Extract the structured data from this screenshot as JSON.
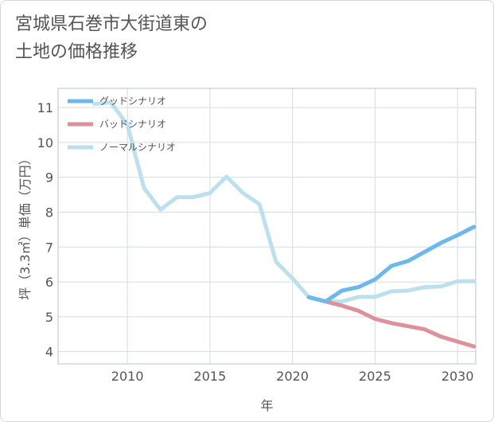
{
  "title_line1": "宮城県石巻市大街道東の",
  "title_line2": "土地の価格推移",
  "chart_data": {
    "type": "line",
    "xlabel": "年",
    "ylabel": "坪（3.3㎡）単価（万円）",
    "xlim": [
      2005.8,
      2031.1
    ],
    "ylim": [
      3.65,
      11.55
    ],
    "xticks": [
      2010,
      2015,
      2020,
      2025,
      2030
    ],
    "yticks": [
      4,
      5,
      6,
      7,
      8,
      9,
      10,
      11
    ],
    "grid": true,
    "legend_position": "top-left",
    "series": [
      {
        "name": "グッドシナリオ",
        "color": "#6cb8ec",
        "x": [
          2021,
          2022,
          2023,
          2024,
          2025,
          2026,
          2027,
          2028,
          2029,
          2030,
          2031
        ],
        "y": [
          5.56,
          5.44,
          5.75,
          5.85,
          6.07,
          6.46,
          6.6,
          6.86,
          7.12,
          7.34,
          7.58
        ]
      },
      {
        "name": "バッドシナリオ",
        "color": "#e0909a",
        "x": [
          2021,
          2022,
          2023,
          2024,
          2025,
          2026,
          2027,
          2028,
          2029,
          2030,
          2031
        ],
        "y": [
          5.56,
          5.44,
          5.32,
          5.17,
          4.94,
          4.82,
          4.73,
          4.64,
          4.43,
          4.29,
          4.15
        ]
      },
      {
        "name": "ノーマルシナリオ",
        "color": "#bde0ee",
        "x": [
          2008,
          2009,
          2010,
          2011,
          2012,
          2013,
          2014,
          2015,
          2016,
          2017,
          2018,
          2019,
          2020,
          2021,
          2022,
          2023,
          2024,
          2025,
          2026,
          2027,
          2028,
          2029,
          2030,
          2031
        ],
        "y": [
          11.1,
          11.15,
          10.5,
          8.7,
          8.07,
          8.43,
          8.43,
          8.55,
          9.02,
          8.55,
          8.23,
          6.58,
          6.1,
          5.56,
          5.44,
          5.44,
          5.57,
          5.57,
          5.73,
          5.75,
          5.85,
          5.87,
          6.02,
          6.02
        ]
      }
    ]
  }
}
